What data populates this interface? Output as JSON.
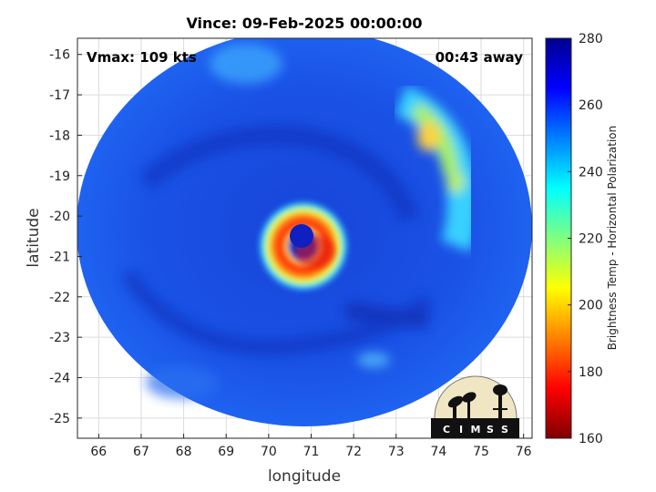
{
  "title": "Vince: 09-Feb-2025 00:00:00",
  "xlabel": "longitude",
  "ylabel": "latitude",
  "vmax_text": "Vmax: 109 kts",
  "away_text": "00:43 away",
  "colorbar": {
    "label": "Brightness Temp - Horizontal Polarization",
    "min": 160,
    "max": 280,
    "ticks": [
      "280",
      "260",
      "240",
      "220",
      "200",
      "180",
      "160"
    ],
    "tick_values": [
      280,
      260,
      240,
      220,
      200,
      180,
      160
    ],
    "stops": [
      "#7f0000",
      "#ff0000",
      "#ff8000",
      "#ffff00",
      "#80ff80",
      "#00ffff",
      "#0080ff",
      "#0000ff",
      "#00008f"
    ]
  },
  "axes": {
    "x_range": [
      65.5,
      76.2
    ],
    "y_range": [
      -25.5,
      -15.6
    ],
    "x_ticks": [
      "66",
      "67",
      "68",
      "69",
      "70",
      "71",
      "72",
      "73",
      "74",
      "75",
      "76"
    ],
    "x_tick_values": [
      66,
      67,
      68,
      69,
      70,
      71,
      72,
      73,
      74,
      75,
      76
    ],
    "y_ticks": [
      "-16",
      "-17",
      "-18",
      "-19",
      "-20",
      "-21",
      "-22",
      "-23",
      "-24",
      "-25"
    ],
    "y_tick_values": [
      -16,
      -17,
      -18,
      -19,
      -20,
      -21,
      -22,
      -23,
      -24,
      -25
    ],
    "grid": true
  },
  "storm": {
    "name": "Vince",
    "eye_lon": 70.78,
    "eye_lat": -20.52
  },
  "logo": {
    "text": "CIMSS",
    "letters": [
      "C",
      "I",
      "M",
      "S",
      "S"
    ]
  },
  "colors": {
    "background_field": "#1a4fe0",
    "cold_cloud": "#9cf060",
    "eyewall": "#ff3010",
    "eye": "#1020c0"
  }
}
